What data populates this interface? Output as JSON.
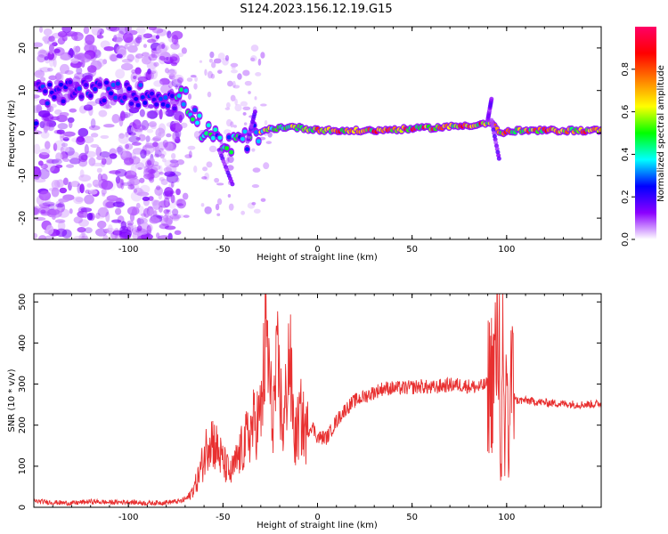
{
  "title": "S124.2023.156.12.19.G15",
  "chart_data": [
    {
      "type": "heatmap",
      "xlabel": "Height of straight line (km)",
      "ylabel": "Frequency (Hz)",
      "xlim": [
        -150,
        150
      ],
      "ylim": [
        -25,
        25
      ],
      "xticks": [
        -100,
        -50,
        0,
        50,
        100
      ],
      "yticks": [
        -20,
        -10,
        0,
        10,
        20
      ],
      "xtick_labels": [
        "-100",
        "-50",
        "0",
        "50",
        "100"
      ],
      "ytick_labels": [
        "-20",
        "-10",
        "0",
        "10",
        "20"
      ],
      "grid": false,
      "colorbar": {
        "label": "Normalized spectral amplitude",
        "range": [
          0,
          1
        ],
        "ticks": [
          0.0,
          0.2,
          0.4,
          0.6,
          0.8
        ],
        "tick_labels": [
          "0.0",
          "0.2",
          "0.4",
          "0.6",
          "0.8"
        ],
        "colormap": [
          "#ffffff",
          "#8b00ff",
          "#0000ff",
          "#00ffff",
          "#00ff00",
          "#ffff00",
          "#ff7f00",
          "#ff0000",
          "#ff0066"
        ]
      },
      "ridge": [
        {
          "x": -148,
          "y": 10
        },
        {
          "x": -140,
          "y": 9
        },
        {
          "x": -120,
          "y": 10
        },
        {
          "x": -100,
          "y": 9
        },
        {
          "x": -85,
          "y": 9
        },
        {
          "x": -75,
          "y": 8
        },
        {
          "x": -70,
          "y": 8
        },
        {
          "x": -65,
          "y": 4
        },
        {
          "x": -60,
          "y": 0
        },
        {
          "x": -55,
          "y": -1
        },
        {
          "x": -50,
          "y": -3
        },
        {
          "x": -45,
          "y": -3
        },
        {
          "x": -35,
          "y": -1
        },
        {
          "x": -25,
          "y": 1
        },
        {
          "x": -15,
          "y": 1.5
        },
        {
          "x": -5,
          "y": 1
        },
        {
          "x": 10,
          "y": 0.5
        },
        {
          "x": 30,
          "y": 0.6
        },
        {
          "x": 50,
          "y": 1
        },
        {
          "x": 70,
          "y": 1.5
        },
        {
          "x": 85,
          "y": 2
        },
        {
          "x": 92,
          "y": 2.5
        },
        {
          "x": 96,
          "y": 0
        },
        {
          "x": 105,
          "y": 0.5
        },
        {
          "x": 125,
          "y": 0.6
        },
        {
          "x": 148,
          "y": 0.6
        }
      ]
    },
    {
      "type": "line",
      "xlabel": "Height of straight line (km)",
      "ylabel": "SNR (10 * v/v)",
      "xlim": [
        -150,
        150
      ],
      "ylim": [
        0,
        520
      ],
      "xticks": [
        -100,
        -50,
        0,
        50,
        100
      ],
      "yticks": [
        0,
        100,
        200,
        300,
        400,
        500
      ],
      "xtick_labels": [
        "-100",
        "-50",
        "0",
        "50",
        "100"
      ],
      "ytick_labels": [
        "0",
        "100",
        "200",
        "300",
        "400",
        "500"
      ],
      "grid": false,
      "color": "#e83030",
      "x": [
        -150,
        -140,
        -130,
        -120,
        -110,
        -100,
        -90,
        -80,
        -72,
        -68,
        -64,
        -60,
        -57,
        -54,
        -50,
        -46,
        -42,
        -38,
        -34,
        -30,
        -27,
        -24,
        -21,
        -18,
        -15,
        -12,
        -9,
        -6,
        -3,
        0,
        5,
        10,
        15,
        20,
        25,
        30,
        35,
        40,
        45,
        50,
        55,
        60,
        65,
        70,
        75,
        80,
        85,
        90,
        93,
        95,
        96,
        97,
        98,
        99,
        100,
        101,
        102,
        105,
        110,
        120,
        130,
        140,
        150
      ],
      "y": [
        15,
        12,
        10,
        14,
        12,
        13,
        10,
        12,
        15,
        25,
        60,
        120,
        180,
        150,
        110,
        80,
        120,
        160,
        200,
        220,
        430,
        210,
        340,
        180,
        380,
        160,
        220,
        180,
        200,
        170,
        170,
        210,
        240,
        260,
        270,
        280,
        290,
        290,
        290,
        292,
        295,
        290,
        295,
        298,
        298,
        295,
        292,
        300,
        320,
        400,
        480,
        60,
        360,
        60,
        430,
        80,
        320,
        260,
        260,
        255,
        252,
        250,
        252
      ]
    }
  ]
}
